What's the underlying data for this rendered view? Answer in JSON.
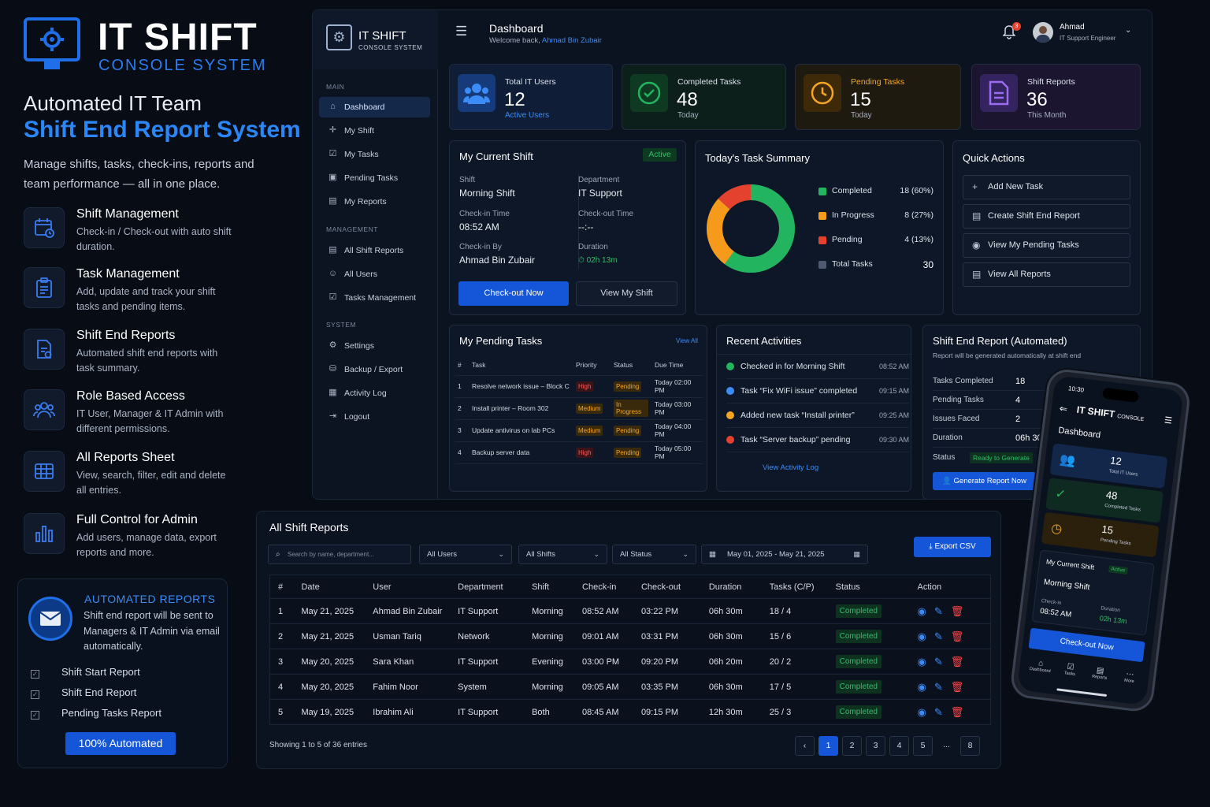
{
  "brand": {
    "name": "IT SHIFT",
    "sub": "CONSOLE SYSTEM"
  },
  "hero": {
    "line1": "Automated IT Team",
    "line2": "Shift End Report System",
    "intro": "Manage shifts, tasks, check-ins, reports and team performance — all in one place."
  },
  "features": [
    {
      "icon": "calendar-clock-icon",
      "title": "Shift Management",
      "desc": "Check-in / Check-out with auto shift duration."
    },
    {
      "icon": "clipboard-icon",
      "title": "Task Management",
      "desc": "Add, update and track your shift tasks and pending items."
    },
    {
      "icon": "report-file-icon",
      "title": "Shift End Reports",
      "desc": "Automated shift end reports with task summary."
    },
    {
      "icon": "users-icon",
      "title": "Role Based Access",
      "desc": "IT User, Manager & IT Admin with different permissions."
    },
    {
      "icon": "table-grid-icon",
      "title": "All Reports Sheet",
      "desc": "View, search, filter, edit and delete all entries."
    },
    {
      "icon": "bar-chart-icon",
      "title": "Full Control for Admin",
      "desc": "Add users, manage data, export reports and more."
    }
  ],
  "automated": {
    "title": "AUTOMATED REPORTS",
    "text": "Shift end report will be sent to Managers & IT Admin via email automatically.",
    "items": [
      "Shift Start Report",
      "Shift End Report",
      "Pending Tasks Report"
    ],
    "button": "100% Automated"
  },
  "sidebar": {
    "brand": "IT SHIFT",
    "brand_sub": "CONSOLE SYSTEM",
    "sections": [
      {
        "title": "MAIN",
        "items": [
          {
            "label": "Dashboard",
            "icon": "home-icon"
          },
          {
            "label": "My Shift",
            "icon": "shift-icon"
          },
          {
            "label": "My Tasks",
            "icon": "tasks-icon"
          },
          {
            "label": "Pending Tasks",
            "icon": "pending-icon"
          },
          {
            "label": "My Reports",
            "icon": "report-icon"
          }
        ]
      },
      {
        "title": "MANAGEMENT",
        "items": [
          {
            "label": "All Shift Reports",
            "icon": "reports-icon"
          },
          {
            "label": "All Users",
            "icon": "users-icon"
          },
          {
            "label": "Tasks Management",
            "icon": "tasks-manage-icon"
          }
        ]
      },
      {
        "title": "SYSTEM",
        "items": [
          {
            "label": "Settings",
            "icon": "gear-icon"
          },
          {
            "label": "Backup / Export",
            "icon": "backup-icon"
          },
          {
            "label": "Activity Log",
            "icon": "log-icon"
          },
          {
            "label": "Logout",
            "icon": "logout-icon"
          }
        ]
      }
    ]
  },
  "topbar": {
    "title": "Dashboard",
    "welcome": "Welcome back,",
    "user_link": "Ahmad Bin Zubair",
    "notifications": "3",
    "user_name": "Ahmad",
    "user_role": "IT Support Engineer"
  },
  "stats": [
    {
      "label": "Total IT Users",
      "value": "12",
      "sub": "Active Users",
      "color": "#3b8cf6"
    },
    {
      "label": "Completed Tasks",
      "value": "48",
      "sub": "Today",
      "color": "#22b45e"
    },
    {
      "label": "Pending Tasks",
      "value": "15",
      "sub": "Today",
      "color": "#f5a524"
    },
    {
      "label": "Shift Reports",
      "value": "36",
      "sub": "This Month",
      "color": "#9b6cf2"
    }
  ],
  "current_shift": {
    "title": "My Current Shift",
    "status": "Active",
    "shift_label": "Shift",
    "shift": "Morning Shift",
    "dept_label": "Department",
    "dept": "IT Support",
    "checkin_label": "Check-in Time",
    "checkin": "08:52 AM",
    "checkout_label": "Check-out Time",
    "checkout": "--:--",
    "by_label": "Check-in By",
    "by": "Ahmad Bin Zubair",
    "duration_label": "Duration",
    "duration": "02h 13m",
    "checkout_btn": "Check-out Now",
    "view_btn": "View My Shift"
  },
  "task_summary": {
    "title": "Today's Task Summary",
    "rows": [
      {
        "name": "Completed",
        "value": "18 (60%)",
        "color": "#22b45e"
      },
      {
        "name": "In Progress",
        "value": "8 (27%)",
        "color": "#f59a1a"
      },
      {
        "name": "Pending",
        "value": "4 (13%)",
        "color": "#e5412f"
      },
      {
        "name": "Total Tasks",
        "value": "30",
        "color": "#4d5a70"
      }
    ]
  },
  "chart_data": {
    "type": "pie",
    "title": "Today's Task Summary",
    "categories": [
      "Completed",
      "In Progress",
      "Pending"
    ],
    "values": [
      18,
      8,
      4
    ],
    "total": 30,
    "colors": [
      "#22b45e",
      "#f59a1a",
      "#e5412f"
    ]
  },
  "quick_actions": {
    "title": "Quick Actions",
    "items": [
      {
        "label": "Add New Task",
        "icon": "plus-icon"
      },
      {
        "label": "Create Shift End Report",
        "icon": "document-icon"
      },
      {
        "label": "View My Pending Tasks",
        "icon": "eye-icon"
      },
      {
        "label": "View All Reports",
        "icon": "document-icon"
      }
    ]
  },
  "pending_tasks": {
    "title": "My Pending Tasks",
    "view_all": "View All",
    "headers": [
      "#",
      "Task",
      "Priority",
      "Status",
      "Due Time"
    ],
    "rows": [
      {
        "n": "1",
        "task": "Resolve network issue – Block C",
        "priority": "High",
        "status": "Pending",
        "due": "Today 02:00 PM"
      },
      {
        "n": "2",
        "task": "Install printer – Room 302",
        "priority": "Medium",
        "status": "In Progress",
        "due": "Today 03:00 PM"
      },
      {
        "n": "3",
        "task": "Update antivirus on lab PCs",
        "priority": "Medium",
        "status": "Pending",
        "due": "Today 04:00 PM"
      },
      {
        "n": "4",
        "task": "Backup server data",
        "priority": "High",
        "status": "Pending",
        "due": "Today 05:00 PM"
      }
    ]
  },
  "activities": {
    "title": "Recent Activities",
    "link": "View Activity Log",
    "items": [
      {
        "text": "Checked in for Morning Shift",
        "time": "08:52 AM",
        "color": "#22b45e"
      },
      {
        "text": "Task “Fix WiFi issue” completed",
        "time": "09:15 AM",
        "color": "#3b8cf6"
      },
      {
        "text": "Added new task “Install printer”",
        "time": "09:25 AM",
        "color": "#f5a524"
      },
      {
        "text": "Task “Server backup” pending",
        "time": "09:30 AM",
        "color": "#e5412f"
      }
    ]
  },
  "shift_end": {
    "title": "Shift End Report (Automated)",
    "note": "Report will be generated automatically at shift end",
    "rows": [
      {
        "label": "Tasks Completed",
        "value": "18"
      },
      {
        "label": "Pending Tasks",
        "value": "4"
      },
      {
        "label": "Issues Faced",
        "value": "2"
      },
      {
        "label": "Duration",
        "value": "06h 30m"
      }
    ],
    "status_label": "Status",
    "status": "Ready to Generate",
    "button": "Generate Report Now"
  },
  "reports": {
    "title": "All Shift Reports",
    "search_placeholder": "Search by name, department...",
    "filters": [
      "All Users",
      "All Shifts",
      "All Status"
    ],
    "date_range": "May 01, 2025 - May 21, 2025",
    "export": "Export CSV",
    "headers": [
      "#",
      "Date",
      "User",
      "Department",
      "Shift",
      "Check-in",
      "Check-out",
      "Duration",
      "Tasks (C/P)",
      "Status",
      "Action"
    ],
    "rows": [
      [
        "1",
        "May 21, 2025",
        "Ahmad Bin Zubair",
        "IT Support",
        "Morning",
        "08:52 AM",
        "03:22 PM",
        "06h 30m",
        "18 / 4",
        "Completed"
      ],
      [
        "2",
        "May 21, 2025",
        "Usman Tariq",
        "Network",
        "Morning",
        "09:01 AM",
        "03:31 PM",
        "06h 30m",
        "15 / 6",
        "Completed"
      ],
      [
        "3",
        "May 20, 2025",
        "Sara Khan",
        "IT Support",
        "Evening",
        "03:00 PM",
        "09:20 PM",
        "06h 20m",
        "20 / 2",
        "Completed"
      ],
      [
        "4",
        "May 20, 2025",
        "Fahim Noor",
        "System",
        "Morning",
        "09:05 AM",
        "03:35 PM",
        "06h 30m",
        "17 / 5",
        "Completed"
      ],
      [
        "5",
        "May 19, 2025",
        "Ibrahim Ali",
        "IT Support",
        "Both",
        "08:45 AM",
        "09:15 PM",
        "12h 30m",
        "25 / 3",
        "Completed"
      ]
    ],
    "showing": "Showing 1 to 5 of 36 entries",
    "pages": [
      "1",
      "2",
      "3",
      "4",
      "5",
      "...",
      "8"
    ]
  },
  "phone": {
    "time": "10:30",
    "brand": "IT SHIFT",
    "brand_sub": "CONSOLE",
    "screen_title": "Dashboard",
    "cards": [
      {
        "value": "12",
        "label": "Total IT Users"
      },
      {
        "value": "48",
        "label": "Completed Tasks"
      },
      {
        "value": "15",
        "label": "Pending Tasks"
      }
    ],
    "shift_title": "My Current Shift",
    "shift_status": "Active",
    "shift": "Morning Shift",
    "checkin_label": "Check-in",
    "checkin": "08:52 AM",
    "duration_label": "Duration",
    "duration": "02h 13m",
    "checkout_btn": "Check-out Now",
    "nav": [
      "Dashboard",
      "Tasks",
      "Reports",
      "More"
    ]
  }
}
